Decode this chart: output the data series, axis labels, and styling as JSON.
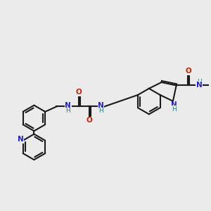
{
  "background_color": "#ebebeb",
  "bond_color": "#1a1a1a",
  "nitrogen_color": "#2222cc",
  "oxygen_color": "#cc2200",
  "nh_color": "#2a7a7a",
  "hydrogen_color": "#666666",
  "line_width": 1.5,
  "figsize": [
    3.0,
    3.0
  ],
  "dpi": 100,
  "xlim": [
    0,
    10
  ],
  "ylim": [
    0,
    10
  ]
}
